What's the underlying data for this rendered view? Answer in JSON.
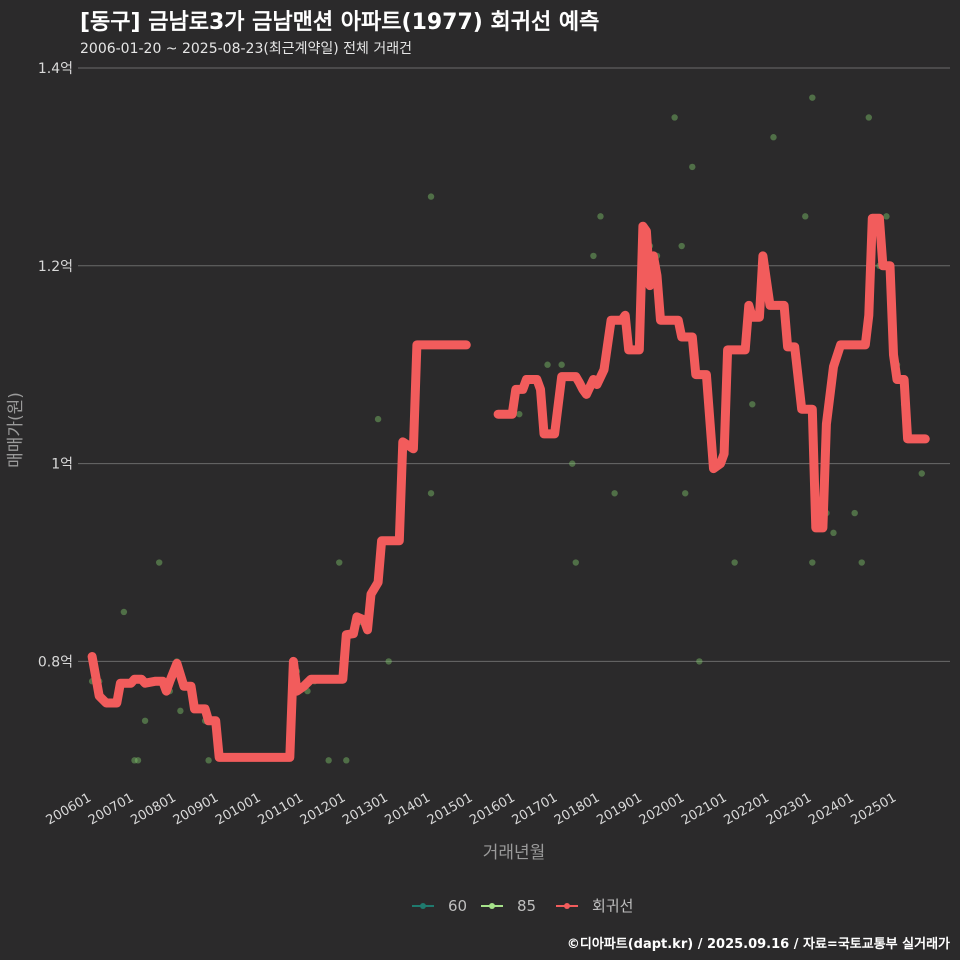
{
  "title": "[동구] 금남로3가 금남맨션 아파트(1977) 회귀선 예측",
  "subtitle": "2006-01-20 ~ 2025-08-23(최근계약일) 전체 거래건",
  "caption": "©디아파트(dapt.kr) / 2025.09.16 / 자료=국토교통부 실거래가",
  "colors": {
    "background": "#2b2a2b",
    "grid": "#6b6b6b",
    "series_60": "#1f7a6e",
    "series_85": "#a6e28a",
    "regression": "#f25c5c"
  },
  "chart_data": {
    "type": "scatter",
    "title": "[동구] 금남로3가 금남맨션 아파트(1977) 회귀선 예측",
    "xlabel": "거래년월",
    "ylabel": "매매가(원)",
    "ylim": [
      0.67,
      1.4
    ],
    "y_unit": "억",
    "y_ticks": [
      {
        "value": 0.8,
        "label": "0.8억"
      },
      {
        "value": 1.0,
        "label": "1억"
      },
      {
        "value": 1.2,
        "label": "1.2억"
      },
      {
        "value": 1.4,
        "label": "1.4억"
      }
    ],
    "xlim": [
      "2005-09",
      "2026-04"
    ],
    "x_ticks": [
      "200601",
      "200701",
      "200801",
      "200901",
      "201001",
      "201101",
      "201201",
      "201301",
      "201401",
      "201501",
      "201601",
      "201701",
      "201801",
      "201901",
      "202001",
      "202101",
      "202201",
      "202301",
      "202401",
      "202501"
    ],
    "grid": true,
    "legend_position": "bottom",
    "legend": [
      "60",
      "85",
      "회귀선"
    ],
    "series": [
      {
        "name": "85",
        "mark": "point",
        "points": [
          {
            "x": "2006-01",
            "y": 0.78
          },
          {
            "x": "2006-03",
            "y": 0.78
          },
          {
            "x": "2006-10",
            "y": 0.85
          },
          {
            "x": "2007-01",
            "y": 0.7
          },
          {
            "x": "2007-02",
            "y": 0.7
          },
          {
            "x": "2007-04",
            "y": 0.74
          },
          {
            "x": "2007-08",
            "y": 0.9
          },
          {
            "x": "2007-11",
            "y": 0.77
          },
          {
            "x": "2008-01",
            "y": 0.8
          },
          {
            "x": "2008-02",
            "y": 0.75
          },
          {
            "x": "2008-09",
            "y": 0.74
          },
          {
            "x": "2008-10",
            "y": 0.7
          },
          {
            "x": "2010-11",
            "y": 0.79
          },
          {
            "x": "2011-02",
            "y": 0.77
          },
          {
            "x": "2011-04",
            "y": 0.78
          },
          {
            "x": "2011-08",
            "y": 0.7
          },
          {
            "x": "2011-11",
            "y": 0.9
          },
          {
            "x": "2012-01",
            "y": 0.7
          },
          {
            "x": "2012-03",
            "y": 0.83
          },
          {
            "x": "2012-05",
            "y": 0.84
          },
          {
            "x": "2012-10",
            "y": 1.045
          },
          {
            "x": "2013-01",
            "y": 0.8
          },
          {
            "x": "2014-01",
            "y": 1.27
          },
          {
            "x": "2014-01",
            "y": 0.97
          },
          {
            "x": "2016-02",
            "y": 1.05
          },
          {
            "x": "2016-10",
            "y": 1.1
          },
          {
            "x": "2017-02",
            "y": 1.1
          },
          {
            "x": "2017-05",
            "y": 1.0
          },
          {
            "x": "2017-06",
            "y": 0.9
          },
          {
            "x": "2017-09",
            "y": 1.07
          },
          {
            "x": "2017-11",
            "y": 1.21
          },
          {
            "x": "2018-01",
            "y": 1.25
          },
          {
            "x": "2018-05",
            "y": 0.97
          },
          {
            "x": "2019-01",
            "y": 1.24
          },
          {
            "x": "2019-03",
            "y": 1.22
          },
          {
            "x": "2019-05",
            "y": 1.21
          },
          {
            "x": "2019-10",
            "y": 1.35
          },
          {
            "x": "2019-12",
            "y": 1.22
          },
          {
            "x": "2020-01",
            "y": 0.97
          },
          {
            "x": "2020-03",
            "y": 1.3
          },
          {
            "x": "2020-05",
            "y": 0.8
          },
          {
            "x": "2021-03",
            "y": 0.9
          },
          {
            "x": "2021-08",
            "y": 1.06
          },
          {
            "x": "2022-02",
            "y": 1.33
          },
          {
            "x": "2022-05",
            "y": 1.16
          },
          {
            "x": "2022-11",
            "y": 1.25
          },
          {
            "x": "2023-01",
            "y": 1.37
          },
          {
            "x": "2023-01",
            "y": 0.9
          },
          {
            "x": "2023-05",
            "y": 0.95
          },
          {
            "x": "2023-07",
            "y": 0.93
          },
          {
            "x": "2024-01",
            "y": 0.95
          },
          {
            "x": "2024-03",
            "y": 0.9
          },
          {
            "x": "2024-05",
            "y": 1.35
          },
          {
            "x": "2024-06",
            "y": 1.2
          },
          {
            "x": "2024-08",
            "y": 1.2
          },
          {
            "x": "2024-10",
            "y": 1.25
          },
          {
            "x": "2025-01",
            "y": 1.1
          },
          {
            "x": "2025-03",
            "y": 1.06
          },
          {
            "x": "2025-08",
            "y": 0.99
          }
        ]
      },
      {
        "name": "회귀선",
        "mark": "line",
        "segments": [
          [
            {
              "x": "2006-01",
              "y": 0.805
            },
            {
              "x": "2006-02",
              "y": 0.785
            },
            {
              "x": "2006-03",
              "y": 0.765
            },
            {
              "x": "2006-05",
              "y": 0.758
            },
            {
              "x": "2006-08",
              "y": 0.758
            },
            {
              "x": "2006-09",
              "y": 0.778
            },
            {
              "x": "2006-12",
              "y": 0.778
            },
            {
              "x": "2007-01",
              "y": 0.782
            },
            {
              "x": "2007-03",
              "y": 0.782
            },
            {
              "x": "2007-04",
              "y": 0.778
            },
            {
              "x": "2007-07",
              "y": 0.78
            },
            {
              "x": "2007-09",
              "y": 0.78
            },
            {
              "x": "2007-10",
              "y": 0.77
            },
            {
              "x": "2007-11",
              "y": 0.78
            },
            {
              "x": "2008-01",
              "y": 0.798
            },
            {
              "x": "2008-03",
              "y": 0.775
            },
            {
              "x": "2008-05",
              "y": 0.775
            },
            {
              "x": "2008-06",
              "y": 0.752
            },
            {
              "x": "2008-09",
              "y": 0.752
            },
            {
              "x": "2008-10",
              "y": 0.74
            },
            {
              "x": "2008-12",
              "y": 0.74
            },
            {
              "x": "2009-01",
              "y": 0.703
            },
            {
              "x": "2010-09",
              "y": 0.703
            },
            {
              "x": "2010-10",
              "y": 0.8
            },
            {
              "x": "2010-11",
              "y": 0.77
            },
            {
              "x": "2011-01",
              "y": 0.775
            },
            {
              "x": "2011-03",
              "y": 0.782
            },
            {
              "x": "2011-12",
              "y": 0.782
            },
            {
              "x": "2012-01",
              "y": 0.827
            },
            {
              "x": "2012-03",
              "y": 0.828
            },
            {
              "x": "2012-04",
              "y": 0.845
            },
            {
              "x": "2012-06",
              "y": 0.842
            },
            {
              "x": "2012-07",
              "y": 0.832
            },
            {
              "x": "2012-08",
              "y": 0.868
            },
            {
              "x": "2012-10",
              "y": 0.88
            },
            {
              "x": "2012-11",
              "y": 0.922
            },
            {
              "x": "2013-04",
              "y": 0.922
            },
            {
              "x": "2013-05",
              "y": 1.022
            },
            {
              "x": "2013-08",
              "y": 1.015
            },
            {
              "x": "2013-09",
              "y": 1.12
            },
            {
              "x": "2014-11",
              "y": 1.12
            }
          ],
          [
            {
              "x": "2015-08",
              "y": 1.05
            },
            {
              "x": "2015-12",
              "y": 1.05
            },
            {
              "x": "2016-01",
              "y": 1.075
            },
            {
              "x": "2016-03",
              "y": 1.075
            },
            {
              "x": "2016-04",
              "y": 1.085
            },
            {
              "x": "2016-07",
              "y": 1.085
            },
            {
              "x": "2016-08",
              "y": 1.075
            },
            {
              "x": "2016-09",
              "y": 1.03
            },
            {
              "x": "2016-12",
              "y": 1.03
            },
            {
              "x": "2017-02",
              "y": 1.088
            },
            {
              "x": "2017-06",
              "y": 1.088
            },
            {
              "x": "2017-07",
              "y": 1.082
            },
            {
              "x": "2017-08",
              "y": 1.075
            },
            {
              "x": "2017-09",
              "y": 1.07
            },
            {
              "x": "2017-11",
              "y": 1.085
            },
            {
              "x": "2017-12",
              "y": 1.08
            },
            {
              "x": "2018-02",
              "y": 1.095
            },
            {
              "x": "2018-04",
              "y": 1.145
            },
            {
              "x": "2018-07",
              "y": 1.145
            },
            {
              "x": "2018-08",
              "y": 1.15
            },
            {
              "x": "2018-09",
              "y": 1.115
            },
            {
              "x": "2018-12",
              "y": 1.115
            },
            {
              "x": "2019-01",
              "y": 1.24
            },
            {
              "x": "2019-02",
              "y": 1.235
            },
            {
              "x": "2019-03",
              "y": 1.18
            },
            {
              "x": "2019-04",
              "y": 1.21
            },
            {
              "x": "2019-05",
              "y": 1.19
            },
            {
              "x": "2019-06",
              "y": 1.145
            },
            {
              "x": "2019-11",
              "y": 1.145
            },
            {
              "x": "2019-12",
              "y": 1.128
            },
            {
              "x": "2020-03",
              "y": 1.128
            },
            {
              "x": "2020-04",
              "y": 1.09
            },
            {
              "x": "2020-07",
              "y": 1.09
            },
            {
              "x": "2020-09",
              "y": 0.995
            },
            {
              "x": "2020-11",
              "y": 1.0
            },
            {
              "x": "2020-12",
              "y": 1.01
            },
            {
              "x": "2021-01",
              "y": 1.115
            },
            {
              "x": "2021-06",
              "y": 1.115
            },
            {
              "x": "2021-07",
              "y": 1.16
            },
            {
              "x": "2021-08",
              "y": 1.148
            },
            {
              "x": "2021-10",
              "y": 1.148
            },
            {
              "x": "2021-11",
              "y": 1.21
            },
            {
              "x": "2022-01",
              "y": 1.16
            },
            {
              "x": "2022-05",
              "y": 1.16
            },
            {
              "x": "2022-06",
              "y": 1.118
            },
            {
              "x": "2022-08",
              "y": 1.118
            },
            {
              "x": "2022-10",
              "y": 1.055
            },
            {
              "x": "2023-01",
              "y": 1.055
            },
            {
              "x": "2023-02",
              "y": 0.935
            },
            {
              "x": "2023-04",
              "y": 0.935
            },
            {
              "x": "2023-05",
              "y": 1.04
            },
            {
              "x": "2023-07",
              "y": 1.098
            },
            {
              "x": "2023-09",
              "y": 1.12
            },
            {
              "x": "2024-04",
              "y": 1.12
            },
            {
              "x": "2024-05",
              "y": 1.15
            },
            {
              "x": "2024-06",
              "y": 1.248
            },
            {
              "x": "2024-08",
              "y": 1.248
            },
            {
              "x": "2024-09",
              "y": 1.2
            },
            {
              "x": "2024-11",
              "y": 1.2
            },
            {
              "x": "2024-12",
              "y": 1.11
            },
            {
              "x": "2025-01",
              "y": 1.085
            },
            {
              "x": "2025-03",
              "y": 1.085
            },
            {
              "x": "2025-04",
              "y": 1.025
            },
            {
              "x": "2025-09",
              "y": 1.025
            }
          ]
        ]
      }
    ]
  }
}
